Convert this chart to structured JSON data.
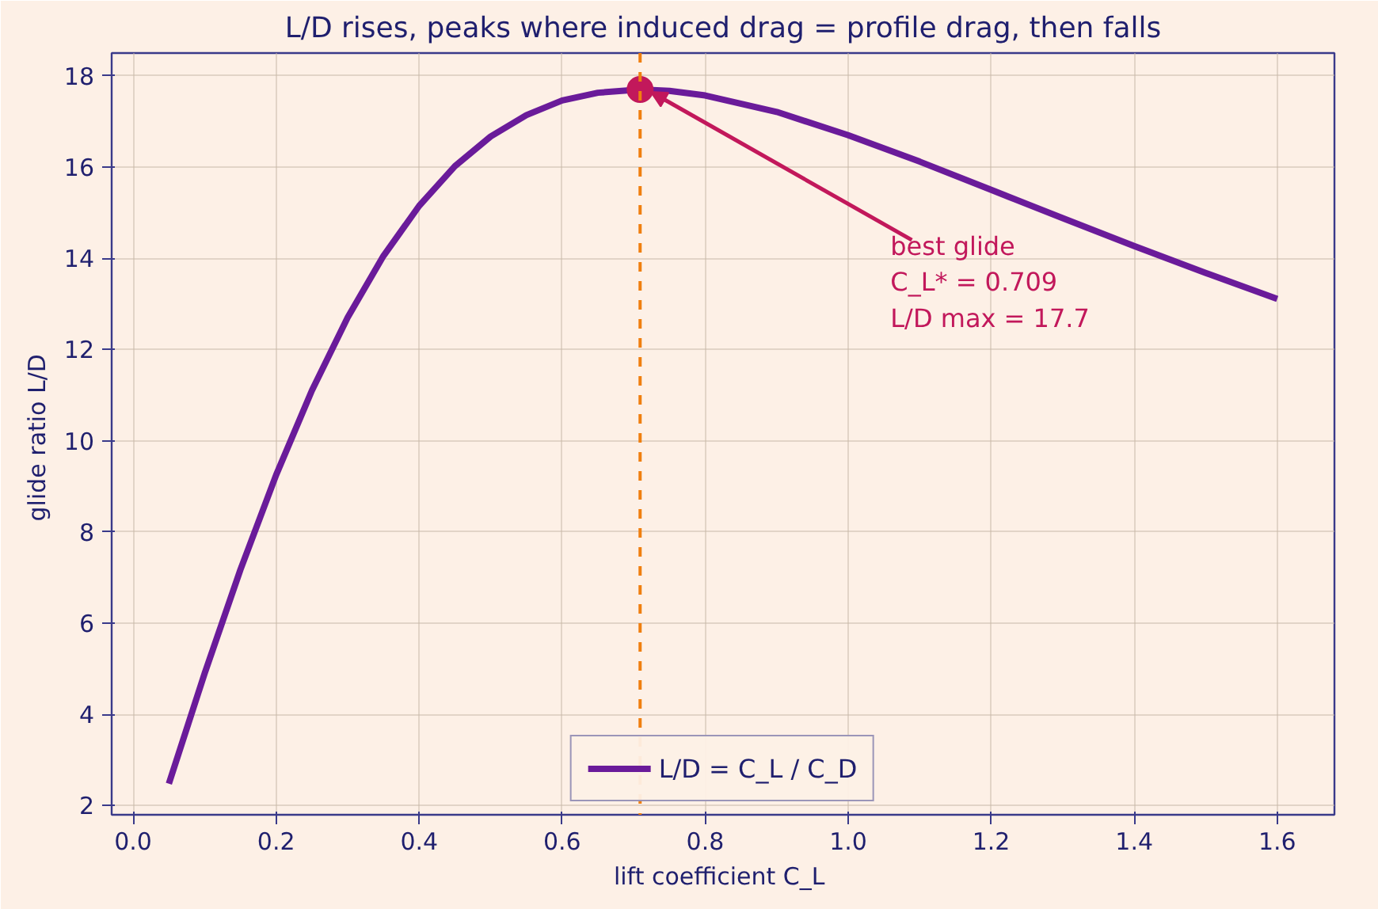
{
  "chart_data": {
    "type": "line",
    "title": "L/D rises, peaks where induced drag = profile drag, then falls",
    "xlabel": "lift coefficient  C_L",
    "ylabel": "glide ratio  L/D",
    "series": [
      {
        "name": "L/D = C_L / C_D",
        "color": "#6a1b9a",
        "x": [
          0.05,
          0.1,
          0.15,
          0.2,
          0.25,
          0.3,
          0.35,
          0.4,
          0.45,
          0.5,
          0.55,
          0.6,
          0.65,
          0.709,
          0.75,
          0.8,
          0.9,
          1.0,
          1.1,
          1.2,
          1.3,
          1.4,
          1.5,
          1.6
        ],
        "values": [
          2.48,
          4.9,
          7.17,
          9.25,
          11.1,
          12.7,
          14.05,
          15.15,
          16.02,
          16.67,
          17.14,
          17.46,
          17.63,
          17.7,
          17.67,
          17.57,
          17.21,
          16.7,
          16.12,
          15.5,
          14.88,
          14.27,
          13.68,
          13.11
        ]
      },
      {
        "type": "scatter",
        "color": "#c2185b",
        "x": [
          0.709
        ],
        "values": [
          17.7
        ],
        "marker": "circle"
      }
    ],
    "xlim": [
      -0.03,
      1.68
    ],
    "ylim": [
      1.8,
      18.5
    ],
    "xticks": [
      {
        "value": 0,
        "label": "0.0"
      },
      {
        "value": 0.2,
        "label": "0.2"
      },
      {
        "value": 0.4,
        "label": "0.4"
      },
      {
        "value": 0.6,
        "label": "0.6"
      },
      {
        "value": 0.8,
        "label": "0.8"
      },
      {
        "value": 1,
        "label": "1.0"
      },
      {
        "value": 1.2,
        "label": "1.2"
      },
      {
        "value": 1.4,
        "label": "1.4"
      },
      {
        "value": 1.6,
        "label": "1.6"
      }
    ],
    "yticks": [
      2,
      4,
      6,
      8,
      10,
      12,
      14,
      16,
      18
    ],
    "ref_lines": [
      {
        "axis": "x",
        "value": 0.709,
        "color": "#f07f0f",
        "line_style": "dashed"
      }
    ],
    "annotations": [
      {
        "text": "best glide\nC_L* = 0.709\nL/D max = 17.7",
        "x": 0.709,
        "y": 17.7
      }
    ],
    "grid": true,
    "legend": "bottom"
  }
}
